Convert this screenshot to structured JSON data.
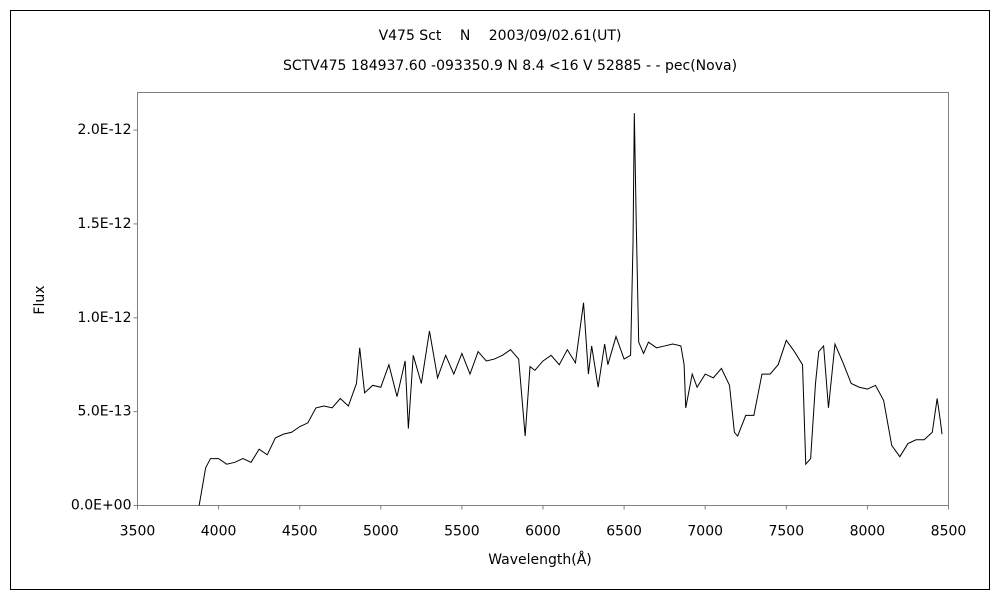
{
  "chart_data": {
    "type": "line",
    "title": "V475 Sct　 N　 2003/09/02.61(UT)",
    "subtitle": "SCTV475 184937.60 -093350.9 N 8.4 <16 V 52885 - - pec(Nova)",
    "x_label": "Wavelength(Å)",
    "y_label": "Flux",
    "xlim": [
      3500,
      8500
    ],
    "xticks": [
      3500,
      4000,
      4500,
      5000,
      5500,
      6000,
      6500,
      7000,
      7500,
      8000,
      8500
    ],
    "ylim": [
      0,
      2.2e-12
    ],
    "yticks": [
      {
        "value": 0,
        "label": "0.0E+00"
      },
      {
        "value": 5e-13,
        "label": "5.0E-13"
      },
      {
        "value": 1e-12,
        "label": "1.0E-12"
      },
      {
        "value": 1.5e-12,
        "label": "1.5E-12"
      },
      {
        "value": 2e-12,
        "label": "2.0E-12"
      }
    ],
    "grid": false,
    "series": [
      {
        "color": "#000000",
        "x": [
          3880,
          3900,
          3920,
          3950,
          4000,
          4050,
          4100,
          4150,
          4200,
          4250,
          4300,
          4350,
          4400,
          4450,
          4500,
          4550,
          4600,
          4650,
          4700,
          4750,
          4800,
          4850,
          4870,
          4900,
          4950,
          5000,
          5050,
          5100,
          5150,
          5170,
          5200,
          5250,
          5300,
          5350,
          5400,
          5450,
          5500,
          5550,
          5600,
          5650,
          5700,
          5750,
          5800,
          5850,
          5890,
          5920,
          5950,
          6000,
          6050,
          6100,
          6150,
          6200,
          6250,
          6280,
          6300,
          6340,
          6380,
          6400,
          6450,
          6500,
          6540,
          6555,
          6563,
          6575,
          6590,
          6620,
          6650,
          6700,
          6750,
          6800,
          6850,
          6870,
          6880,
          6920,
          6950,
          7000,
          7050,
          7100,
          7150,
          7180,
          7200,
          7250,
          7300,
          7350,
          7400,
          7450,
          7500,
          7550,
          7600,
          7620,
          7650,
          7680,
          7700,
          7730,
          7760,
          7800,
          7850,
          7900,
          7950,
          8000,
          8050,
          8100,
          8150,
          8200,
          8250,
          8300,
          8350,
          8400,
          8430,
          8450,
          8460
        ],
        "values": [
          0,
          1e-13,
          2e-13,
          2.5e-13,
          2.5e-13,
          2.2e-13,
          2.3e-13,
          2.5e-13,
          2.3e-13,
          3e-13,
          2.7e-13,
          3.6e-13,
          3.8e-13,
          3.9e-13,
          4.2e-13,
          4.4e-13,
          5.2e-13,
          5.3e-13,
          5.2e-13,
          5.7e-13,
          5.3e-13,
          6.5e-13,
          8.4e-13,
          6e-13,
          6.4e-13,
          6.3e-13,
          7.5e-13,
          5.8e-13,
          7.7e-13,
          4.1e-13,
          8e-13,
          6.5e-13,
          9.3e-13,
          6.8e-13,
          8e-13,
          7e-13,
          8.1e-13,
          7e-13,
          8.2e-13,
          7.7e-13,
          7.8e-13,
          8e-13,
          8.3e-13,
          7.8e-13,
          3.7e-13,
          7.4e-13,
          7.2e-13,
          7.7e-13,
          8e-13,
          7.5e-13,
          8.3e-13,
          7.6e-13,
          1.08e-12,
          7e-13,
          8.5e-13,
          6.3e-13,
          8.6e-13,
          7.5e-13,
          9e-13,
          7.8e-13,
          8e-13,
          1.4e-12,
          2.09e-12,
          1.5e-12,
          8.7e-13,
          8.1e-13,
          8.7e-13,
          8.4e-13,
          8.5e-13,
          8.6e-13,
          8.5e-13,
          7.5e-13,
          5.2e-13,
          7e-13,
          6.3e-13,
          7e-13,
          6.8e-13,
          7.3e-13,
          6.4e-13,
          3.9e-13,
          3.7e-13,
          4.8e-13,
          4.8e-13,
          7e-13,
          7e-13,
          7.5e-13,
          8.8e-13,
          8.2e-13,
          7.5e-13,
          2.2e-13,
          2.5e-13,
          6.5e-13,
          8.2e-13,
          8.5e-13,
          5.2e-13,
          8.6e-13,
          7.6e-13,
          6.5e-13,
          6.3e-13,
          6.2e-13,
          6.4e-13,
          5.6e-13,
          3.2e-13,
          2.6e-13,
          3.3e-13,
          3.5e-13,
          3.5e-13,
          3.9e-13,
          5.7e-13,
          4.5e-13,
          3.8e-13
        ]
      }
    ]
  }
}
